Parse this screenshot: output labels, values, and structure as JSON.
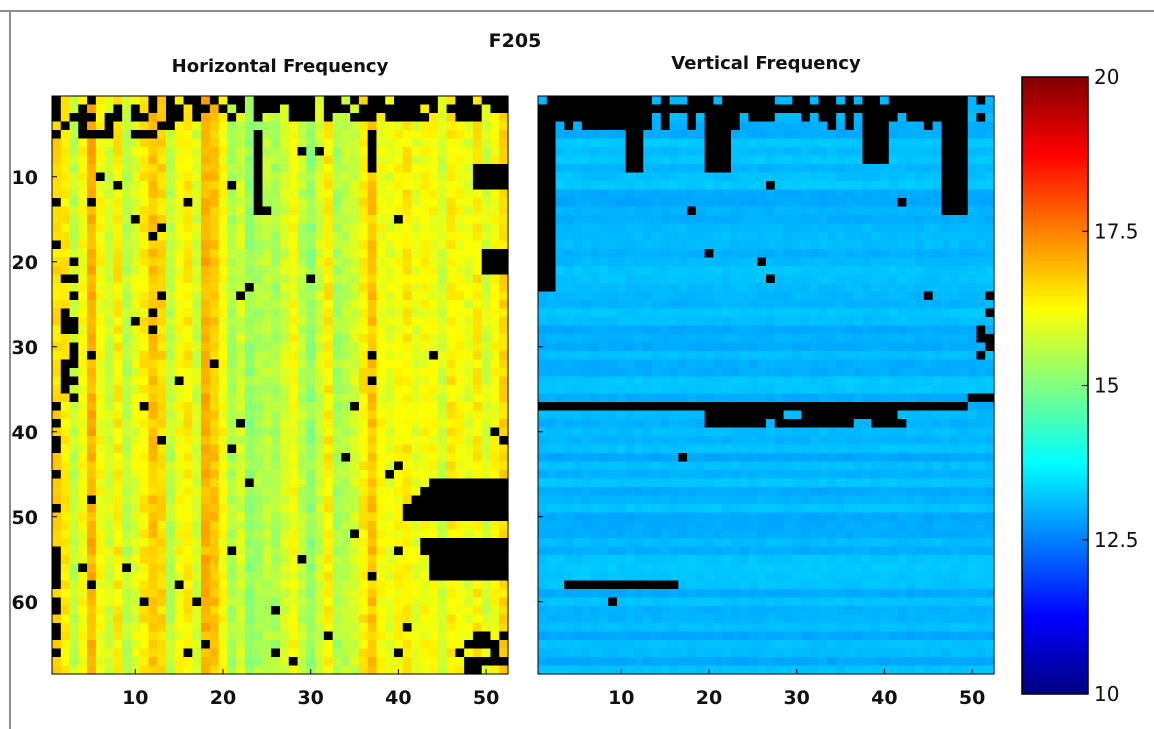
{
  "chart_data": [
    {
      "type": "heatmap",
      "suptitle": "F205",
      "title": "Horizontal Frequency",
      "xlim": [
        0.5,
        52.5
      ],
      "ylim": [
        68.5,
        0.5
      ],
      "yticks": [
        10,
        20,
        30,
        40,
        50,
        60
      ],
      "xticks": [
        10,
        20,
        30,
        40,
        50
      ],
      "rows": 68,
      "cols": 52,
      "value_range": [
        15.0,
        17.2
      ],
      "missing_value_color": "#000000",
      "description_values": {
        "column_profile": [
          16.6,
          16.4,
          15.6,
          16.2,
          17.0,
          16.2,
          15.8,
          16.4,
          15.6,
          16.0,
          16.4,
          16.8,
          16.6,
          15.6,
          16.2,
          16.4,
          15.8,
          17.0,
          16.8,
          16.2,
          15.4,
          15.8,
          15.2,
          15.4,
          15.6,
          15.4,
          15.8,
          16.2,
          15.6,
          15.2,
          15.8,
          16.4,
          15.4,
          15.6,
          15.8,
          16.4,
          16.8,
          16.2,
          16.0,
          16.2,
          16.4,
          16.0,
          16.2,
          16.2,
          15.8,
          16.4,
          16.2,
          16.0,
          16.4,
          15.8,
          16.2,
          16.6
        ],
        "black_regions": "top rows 1-5 missing; large missing block rows 46-57 columns 41-52; scattered missing cells"
      }
    },
    {
      "type": "heatmap",
      "title": "Vertical Frequency",
      "xlim": [
        0.5,
        52.5
      ],
      "ylim": [
        68.5,
        0.5
      ],
      "xticks": [
        10,
        20,
        30,
        40,
        50
      ],
      "rows": 68,
      "cols": 52,
      "value_range": [
        12.6,
        13.6
      ],
      "missing_value_color": "#000000",
      "description_values": {
        "black_regions": "top rows 1-9 missing with columns dipping deeper; left columns 1-2 missing rows 1-23; missing row 37; missing segment rows 38-39 columns 20-42; missing segment row 58 columns 4-16"
      }
    },
    {
      "type": "colorbar",
      "range": [
        10,
        20
      ],
      "tick_labels": [
        "20",
        "17.5",
        "15",
        "12.5",
        "10"
      ],
      "colormap": "jet"
    }
  ]
}
